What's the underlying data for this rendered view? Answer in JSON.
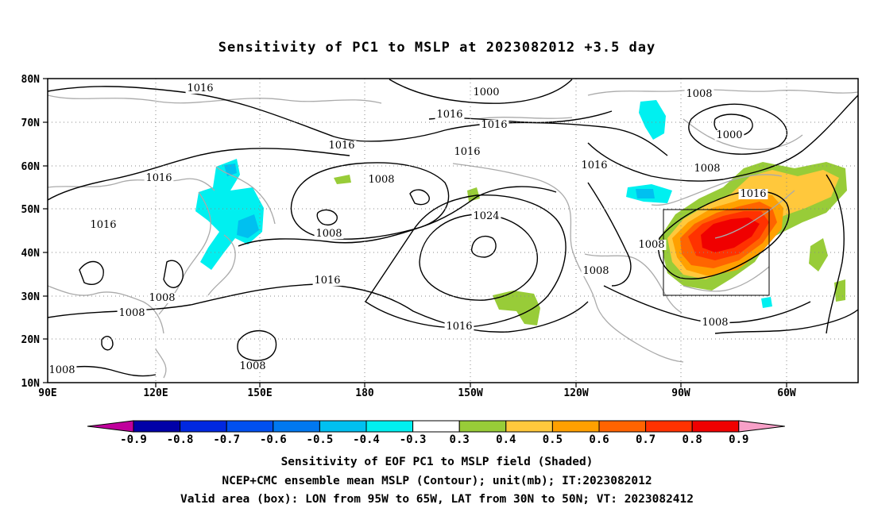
{
  "title": "Sensitivity of PC1 to MSLP at 2023082012 +3.5 day",
  "map": {
    "lat_labels": [
      "80N",
      "70N",
      "60N",
      "50N",
      "40N",
      "30N",
      "20N",
      "10N"
    ],
    "lon_labels": [
      "90E",
      "120E",
      "150E",
      "180",
      "150W",
      "120W",
      "90W",
      "60W"
    ],
    "extent": {
      "lon_west": "90E",
      "lon_east": "40W",
      "lat_south": 10,
      "lat_north": 80
    },
    "grid": "dotted",
    "coastline_color": "#aaaaaa",
    "contour_color": "#000000",
    "valid_box": {
      "lon_from": "95W",
      "lon_to": "65W",
      "lat_from": "30N",
      "lat_to": "50N"
    },
    "contour_labels": [
      "1016",
      "1016",
      "1016",
      "1016",
      "1016",
      "1016",
      "1016",
      "1016",
      "1016",
      "1016",
      "1016",
      "1000",
      "1000",
      "1008",
      "1008",
      "1008",
      "1008",
      "1008",
      "1008",
      "1008",
      "1008",
      "1008",
      "1008",
      "1008",
      "1024"
    ]
  },
  "colorbar": {
    "ticks": [
      "-0.9",
      "-0.8",
      "-0.7",
      "-0.6",
      "-0.5",
      "-0.4",
      "-0.3",
      "0.3",
      "0.4",
      "0.5",
      "0.6",
      "0.7",
      "0.8",
      "0.9"
    ],
    "colors": [
      "#0000a8",
      "#0028e0",
      "#0050f0",
      "#0078f0",
      "#00c0f0",
      "#00f0f0",
      "#ffffff",
      "#98cc38",
      "#ffc83c",
      "#ffa000",
      "#ff6400",
      "#ff3200",
      "#f00000"
    ],
    "low_end_color": "#c0009c",
    "high_end_color": "#f8a0c8"
  },
  "captions": {
    "line1": "Sensitivity of EOF PC1 to MSLP field (Shaded)",
    "line2": "NCEP+CMC ensemble mean MSLP (Contour); unit(mb); IT:2023082012",
    "line3": "Valid area (box): LON from 95W to 65W, LAT from 30N to 50N; VT: 2023082412"
  }
}
